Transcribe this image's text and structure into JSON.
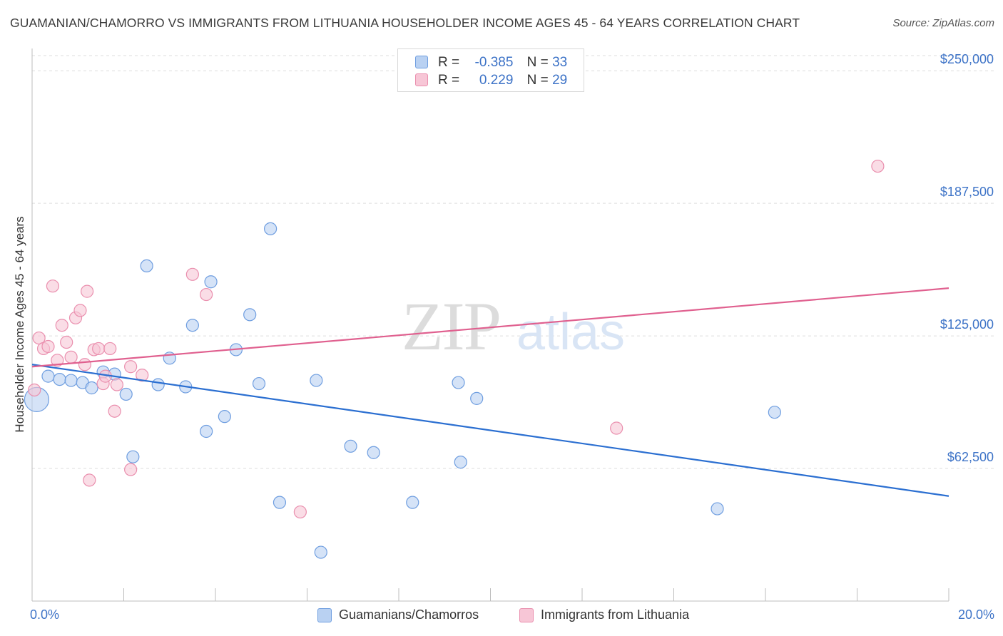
{
  "title": "GUAMANIAN/CHAMORRO VS IMMIGRANTS FROM LITHUANIA HOUSEHOLDER INCOME AGES 45 - 64 YEARS CORRELATION CHART",
  "source": "Source: ZipAtlas.com",
  "watermark": {
    "zip": "ZIP",
    "atlas": "atlas"
  },
  "legend": {
    "rows": [
      {
        "r_label": "R =",
        "r_value": "-0.385",
        "n_label": "N =",
        "n_value": "33",
        "fill": "#b9d1f2",
        "stroke": "#6f9ee0"
      },
      {
        "r_label": "R =",
        "r_value": "0.229",
        "n_label": "N =",
        "n_value": "29",
        "fill": "#f7c6d6",
        "stroke": "#ea8fae"
      }
    ]
  },
  "bottom_legend": {
    "items": [
      {
        "label": "Guamanians/Chamorros",
        "fill": "#b9d1f2",
        "stroke": "#6f9ee0"
      },
      {
        "label": "Immigrants from Lithuania",
        "fill": "#f7c6d6",
        "stroke": "#ea8fae"
      }
    ]
  },
  "chart_data": {
    "type": "scatter",
    "title": "GUAMANIAN/CHAMORRO VS IMMIGRANTS FROM LITHUANIA HOUSEHOLDER INCOME AGES 45 - 64 YEARS CORRELATION CHART",
    "xlabel": "",
    "ylabel": "Householder Income Ages 45 - 64 years",
    "xlim": [
      0,
      20
    ],
    "ylim": [
      0,
      262500
    ],
    "x_tick_labels": [
      {
        "x": 0,
        "label": "0.0%"
      },
      {
        "x": 20,
        "label": "20.0%"
      }
    ],
    "y_ticks": [
      {
        "value": 62500,
        "label": "$62,500"
      },
      {
        "value": 125000,
        "label": "$125,000"
      },
      {
        "value": 187500,
        "label": "$187,500"
      },
      {
        "value": 250000,
        "label": "$250,000"
      }
    ],
    "grid": true,
    "series": [
      {
        "name": "Guamanians/Chamorros",
        "color": "#6f9ee0",
        "fill": "#b9d1f2",
        "trend_color": "#2b6fd1",
        "trend": {
          "x": [
            0,
            20
          ],
          "y": [
            111500,
            49500
          ]
        },
        "points": [
          {
            "x": 0.1,
            "y": 95000,
            "size": "large"
          },
          {
            "x": 0.35,
            "y": 106000
          },
          {
            "x": 0.6,
            "y": 104500
          },
          {
            "x": 0.85,
            "y": 104000
          },
          {
            "x": 1.1,
            "y": 103000
          },
          {
            "x": 1.3,
            "y": 100500
          },
          {
            "x": 1.55,
            "y": 108000
          },
          {
            "x": 1.8,
            "y": 107000
          },
          {
            "x": 2.05,
            "y": 97500
          },
          {
            "x": 2.2,
            "y": 68000
          },
          {
            "x": 2.5,
            "y": 158000
          },
          {
            "x": 2.75,
            "y": 102000
          },
          {
            "x": 3.0,
            "y": 114500
          },
          {
            "x": 3.35,
            "y": 101000
          },
          {
            "x": 3.5,
            "y": 130000
          },
          {
            "x": 3.8,
            "y": 80000
          },
          {
            "x": 3.9,
            "y": 150500
          },
          {
            "x": 4.2,
            "y": 87000
          },
          {
            "x": 4.45,
            "y": 118500
          },
          {
            "x": 4.75,
            "y": 135000
          },
          {
            "x": 4.95,
            "y": 102500
          },
          {
            "x": 5.2,
            "y": 175500
          },
          {
            "x": 5.4,
            "y": 46500
          },
          {
            "x": 6.2,
            "y": 104000
          },
          {
            "x": 6.3,
            "y": 23000
          },
          {
            "x": 6.95,
            "y": 73000
          },
          {
            "x": 7.45,
            "y": 70000
          },
          {
            "x": 8.3,
            "y": 46500
          },
          {
            "x": 9.3,
            "y": 103000
          },
          {
            "x": 9.35,
            "y": 65500
          },
          {
            "x": 9.7,
            "y": 95500
          },
          {
            "x": 14.95,
            "y": 43500
          },
          {
            "x": 16.2,
            "y": 89000
          }
        ]
      },
      {
        "name": "Immigrants from Lithuania",
        "color": "#ea8fae",
        "fill": "#f7c6d6",
        "trend_color": "#e0608f",
        "trend": {
          "x": [
            0,
            20
          ],
          "y": [
            110500,
            147500
          ]
        },
        "points": [
          {
            "x": 0.05,
            "y": 99500
          },
          {
            "x": 0.15,
            "y": 124000
          },
          {
            "x": 0.25,
            "y": 119000
          },
          {
            "x": 0.35,
            "y": 120000
          },
          {
            "x": 0.45,
            "y": 148500
          },
          {
            "x": 0.55,
            "y": 113500
          },
          {
            "x": 0.65,
            "y": 130000
          },
          {
            "x": 0.75,
            "y": 122000
          },
          {
            "x": 0.85,
            "y": 115000
          },
          {
            "x": 0.95,
            "y": 133500
          },
          {
            "x": 1.05,
            "y": 137000
          },
          {
            "x": 1.15,
            "y": 111500
          },
          {
            "x": 1.2,
            "y": 146000
          },
          {
            "x": 1.25,
            "y": 57000
          },
          {
            "x": 1.35,
            "y": 118500
          },
          {
            "x": 1.45,
            "y": 119000
          },
          {
            "x": 1.55,
            "y": 102500
          },
          {
            "x": 1.6,
            "y": 106000
          },
          {
            "x": 1.7,
            "y": 119000
          },
          {
            "x": 1.8,
            "y": 89500
          },
          {
            "x": 1.85,
            "y": 102000
          },
          {
            "x": 2.15,
            "y": 62000
          },
          {
            "x": 2.15,
            "y": 110500
          },
          {
            "x": 2.4,
            "y": 106500
          },
          {
            "x": 3.5,
            "y": 154000
          },
          {
            "x": 3.8,
            "y": 144500
          },
          {
            "x": 5.85,
            "y": 42000
          },
          {
            "x": 12.75,
            "y": 81500
          },
          {
            "x": 18.45,
            "y": 205000
          }
        ]
      }
    ]
  }
}
